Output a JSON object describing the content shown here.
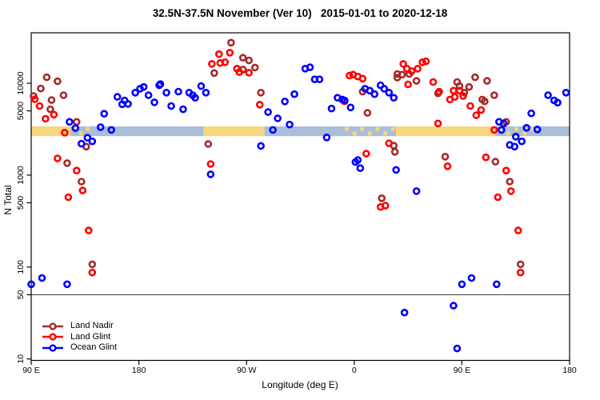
{
  "chart_data": {
    "type": "scatter",
    "title": "32.5N-37.5N November (Ver 10)   2015-01-01 to 2020-12-18",
    "xlabel": "Longitude (deg E)",
    "ylabel": "N Total",
    "x_scale": "linear longitude, wrapped eastward",
    "y_scale": "log10",
    "xlim": [
      90,
      540
    ],
    "ylim": [
      10,
      32000
    ],
    "grid": false,
    "reference_hline_n": 50,
    "x_ticks": [
      {
        "lon": 90,
        "label": "90 E"
      },
      {
        "lon": 180,
        "label": "180"
      },
      {
        "lon": 270,
        "label": "90 W"
      },
      {
        "lon": 360,
        "label": "0"
      },
      {
        "lon": 450,
        "label": "90 E"
      },
      {
        "lon": 540,
        "label": "180"
      }
    ],
    "y_ticks": [
      {
        "value": 10000,
        "label": "10000"
      },
      {
        "value": 5000,
        "label": "5000"
      },
      {
        "value": 1000,
        "label": "1000"
      },
      {
        "value": 500,
        "label": "500"
      },
      {
        "value": 100,
        "label": "100"
      },
      {
        "value": 50,
        "label": "50"
      },
      {
        "value": 10,
        "label": "10"
      }
    ],
    "legend_position": "bottom-left",
    "map_band": {
      "description": "latitude-strip world map, land vs ocean",
      "n_center": 3000,
      "land_color": "#F6D77E",
      "ocean_color": "#A9BED9",
      "segments": [
        {
          "from": 90,
          "to": 123,
          "surface": "land"
        },
        {
          "from": 123,
          "to": 139,
          "surface": "mixed"
        },
        {
          "from": 139,
          "to": 234,
          "surface": "ocean"
        },
        {
          "from": 234,
          "to": 285,
          "surface": "land"
        },
        {
          "from": 285,
          "to": 350,
          "surface": "ocean"
        },
        {
          "from": 350,
          "to": 395,
          "surface": "mixed"
        },
        {
          "from": 395,
          "to": 478,
          "surface": "land"
        },
        {
          "from": 478,
          "to": 512,
          "surface": "mixed"
        },
        {
          "from": 512,
          "to": 540,
          "surface": "ocean"
        }
      ]
    },
    "series": [
      {
        "name": "Land Nadir",
        "color": "#A52A2A",
        "points": [
          [
            103,
            11600
          ],
          [
            112,
            10500
          ],
          [
            98,
            8750
          ],
          [
            92,
            7250
          ],
          [
            107,
            6550
          ],
          [
            117,
            7400
          ],
          [
            106,
            5200
          ],
          [
            128,
            3800
          ],
          [
            136,
            2040
          ],
          [
            120,
            1350
          ],
          [
            132,
            850
          ],
          [
            141,
            107
          ],
          [
            257,
            27600
          ],
          [
            267,
            18900
          ],
          [
            272,
            17700
          ],
          [
            277,
            14800
          ],
          [
            267,
            14100
          ],
          [
            243,
            12900
          ],
          [
            282,
            7900
          ],
          [
            238,
            2180
          ],
          [
            396,
            11500
          ],
          [
            396,
            12600
          ],
          [
            400,
            12400
          ],
          [
            406,
            12600
          ],
          [
            412,
            10600
          ],
          [
            367,
            8100
          ],
          [
            371,
            4750
          ],
          [
            430,
            7750
          ],
          [
            393,
            2090
          ],
          [
            394,
            1790
          ],
          [
            383,
            560
          ],
          [
            446,
            10300
          ],
          [
            448,
            9300
          ],
          [
            461,
            11600
          ],
          [
            471,
            10600
          ],
          [
            456,
            9100
          ],
          [
            452,
            7900
          ],
          [
            467,
            6650
          ],
          [
            469,
            6350
          ],
          [
            477,
            7400
          ],
          [
            487,
            3800
          ],
          [
            436,
            1590
          ],
          [
            478,
            1400
          ],
          [
            490,
            850
          ],
          [
            499,
            107
          ]
        ]
      },
      {
        "name": "Land Glint",
        "color": "#FF0000",
        "points": [
          [
            93,
            6700
          ],
          [
            97,
            5650
          ],
          [
            109,
            4550
          ],
          [
            102,
            4100
          ],
          [
            118,
            2900
          ],
          [
            112,
            1520
          ],
          [
            128,
            1120
          ],
          [
            133,
            680
          ],
          [
            121,
            575
          ],
          [
            138,
            250
          ],
          [
            141,
            87
          ],
          [
            247,
            20700
          ],
          [
            256,
            21500
          ],
          [
            252,
            16900
          ],
          [
            248,
            16600
          ],
          [
            262,
            14400
          ],
          [
            264,
            13200
          ],
          [
            272,
            13000
          ],
          [
            241,
            16200
          ],
          [
            281,
            5850
          ],
          [
            240,
            1320
          ],
          [
            370,
            1710
          ],
          [
            356,
            12100
          ],
          [
            359,
            12400
          ],
          [
            363,
            11800
          ],
          [
            367,
            11200
          ],
          [
            352,
            6340
          ],
          [
            401,
            16200
          ],
          [
            404,
            14400
          ],
          [
            408,
            13500
          ],
          [
            413,
            14400
          ],
          [
            417,
            16900
          ],
          [
            420,
            17300
          ],
          [
            405,
            9700
          ],
          [
            426,
            10300
          ],
          [
            430,
            3650
          ],
          [
            389,
            2220
          ],
          [
            382,
            450
          ],
          [
            386,
            465
          ],
          [
            443,
            8300
          ],
          [
            448,
            8300
          ],
          [
            440,
            6650
          ],
          [
            444,
            7100
          ],
          [
            451,
            7250
          ],
          [
            431,
            8100
          ],
          [
            457,
            5650
          ],
          [
            466,
            5100
          ],
          [
            462,
            4480
          ],
          [
            477,
            3100
          ],
          [
            438,
            1250
          ],
          [
            470,
            1560
          ],
          [
            487,
            1120
          ],
          [
            491,
            670
          ],
          [
            480,
            575
          ],
          [
            497,
            250
          ],
          [
            499,
            87
          ]
        ]
      },
      {
        "name": "Ocean Glint",
        "color": "#0000FF",
        "points": [
          [
            162,
            7100
          ],
          [
            168,
            6500
          ],
          [
            166,
            5900
          ],
          [
            171,
            5950
          ],
          [
            177,
            7900
          ],
          [
            181,
            8700
          ],
          [
            184,
            9100
          ],
          [
            188,
            7400
          ],
          [
            193,
            6200
          ],
          [
            197,
            9500
          ],
          [
            198,
            9800
          ],
          [
            203,
            7900
          ],
          [
            151,
            4650
          ],
          [
            122,
            3800
          ],
          [
            127,
            3250
          ],
          [
            148,
            3320
          ],
          [
            157,
            3100
          ],
          [
            137,
            2550
          ],
          [
            141,
            2330
          ],
          [
            132,
            2200
          ],
          [
            213,
            8100
          ],
          [
            222,
            7900
          ],
          [
            225,
            7400
          ],
          [
            232,
            9300
          ],
          [
            236,
            7900
          ],
          [
            227,
            6950
          ],
          [
            207,
            5650
          ],
          [
            217,
            5200
          ],
          [
            288,
            4850
          ],
          [
            302,
            6330
          ],
          [
            310,
            7600
          ],
          [
            296,
            4150
          ],
          [
            292,
            3100
          ],
          [
            306,
            3550
          ],
          [
            282,
            2080
          ],
          [
            240,
            1020
          ],
          [
            319,
            14400
          ],
          [
            323,
            14900
          ],
          [
            327,
            11000
          ],
          [
            331,
            11000
          ],
          [
            369,
            8700
          ],
          [
            373,
            8300
          ],
          [
            382,
            9500
          ],
          [
            385,
            8700
          ],
          [
            377,
            7600
          ],
          [
            389,
            7900
          ],
          [
            393,
            6950
          ],
          [
            346,
            6950
          ],
          [
            350,
            6650
          ],
          [
            352,
            6500
          ],
          [
            341,
            5300
          ],
          [
            357,
            5450
          ],
          [
            337,
            2570
          ],
          [
            363,
            1460
          ],
          [
            361,
            1390
          ],
          [
            365,
            1190
          ],
          [
            395,
            1140
          ],
          [
            412,
            670
          ],
          [
            522,
            7400
          ],
          [
            527,
            6500
          ],
          [
            530,
            6150
          ],
          [
            537,
            7900
          ],
          [
            508,
            4700
          ],
          [
            504,
            3270
          ],
          [
            513,
            3140
          ],
          [
            481,
            3800
          ],
          [
            485,
            3650
          ],
          [
            483,
            3100
          ],
          [
            495,
            2620
          ],
          [
            500,
            2330
          ],
          [
            490,
            2130
          ],
          [
            494,
            2040
          ],
          [
            99,
            76
          ],
          [
            90,
            65
          ],
          [
            120,
            65
          ],
          [
            450,
            65
          ],
          [
            458,
            76
          ],
          [
            479,
            65
          ],
          [
            402,
            32
          ],
          [
            443,
            38
          ],
          [
            446,
            13
          ]
        ]
      }
    ],
    "legend": {
      "items": [
        {
          "label": "Land Nadir",
          "color": "#A52A2A"
        },
        {
          "label": "Land Glint",
          "color": "#FF0000"
        },
        {
          "label": "Ocean Glint",
          "color": "#0000FF"
        }
      ]
    }
  }
}
